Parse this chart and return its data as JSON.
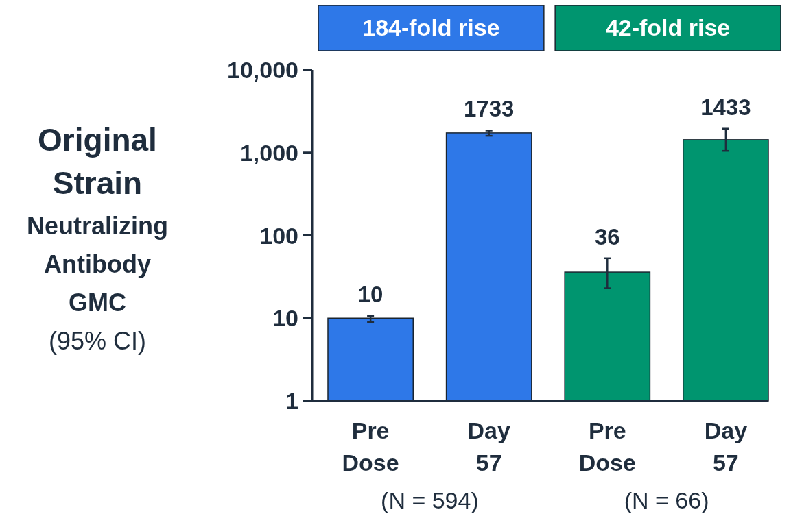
{
  "chart_data": {
    "type": "bar",
    "ylabel": "Original\nStrain\nNeutralizing\nAntibody\nGMC\n(95% CI)",
    "categories": [
      "Pre Dose",
      "Day 57",
      "Pre Dose",
      "Day 57"
    ],
    "values": [
      10,
      1733,
      36,
      1433
    ],
    "colors": [
      "#2e78e8",
      "#2e78e8",
      "#00956f",
      "#00956f"
    ],
    "errors": [
      [
        9,
        10.6
      ],
      [
        1600,
        1850
      ],
      [
        23,
        53
      ],
      [
        1050,
        1950
      ]
    ],
    "log": true,
    "ylim": [
      1,
      10000
    ],
    "yticks": [
      1,
      10,
      100,
      {
        "value": 1000,
        "label": "1,000"
      },
      {
        "value": 10000,
        "label": "10,000"
      }
    ],
    "data_labels": true,
    "grid": false,
    "annotations": [
      "184-fold rise",
      "42-fold rise",
      "(N = 594)",
      "(N = 66)"
    ]
  }
}
